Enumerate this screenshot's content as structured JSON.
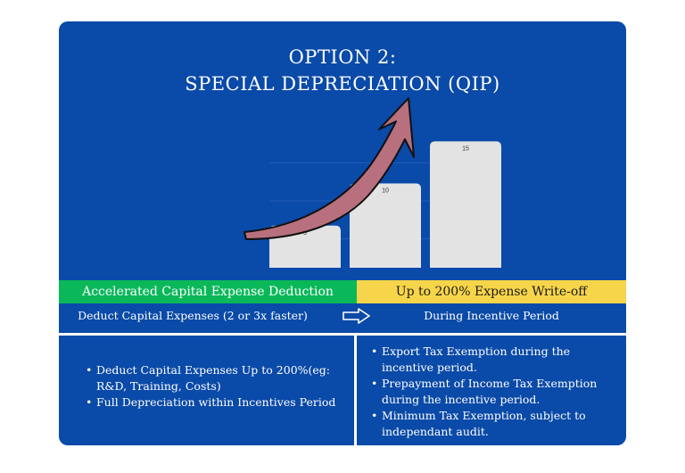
{
  "title": {
    "line1": "OPTION 2:",
    "line2": "SPECIAL DEPRECIATION (QIP)"
  },
  "chart_data": {
    "type": "bar",
    "categories": [
      "",
      "",
      ""
    ],
    "values": [
      5,
      10,
      15
    ],
    "data_labels": [
      "5",
      "10",
      "15"
    ],
    "bar_color": "#e3e3e3",
    "ylim": [
      0,
      18
    ],
    "grid": true,
    "arrow_color": "#b8707e"
  },
  "banner": {
    "left": "Accelerated Capital Expense Deduction",
    "right": "Up to 200% Expense Write-off"
  },
  "row": {
    "left": "Deduct Capital Expenses (2 or 3x faster)",
    "right": "During Incentive Period"
  },
  "left_bullets": [
    "Deduct Capital Expenses Up to 200%(eg: R&D, Training, Costs)",
    "Full Depreciation within Incentives Period"
  ],
  "right_bullets": [
    "Export Tax Exemption during the incentive period.",
    "Prepayment of Income Tax Exemption during the incentive period.",
    "Minimum Tax Exemption, subject to independant audit."
  ],
  "colors": {
    "background": "#0a4aa8",
    "green": "#0ab85a",
    "yellow": "#f7d54a"
  }
}
